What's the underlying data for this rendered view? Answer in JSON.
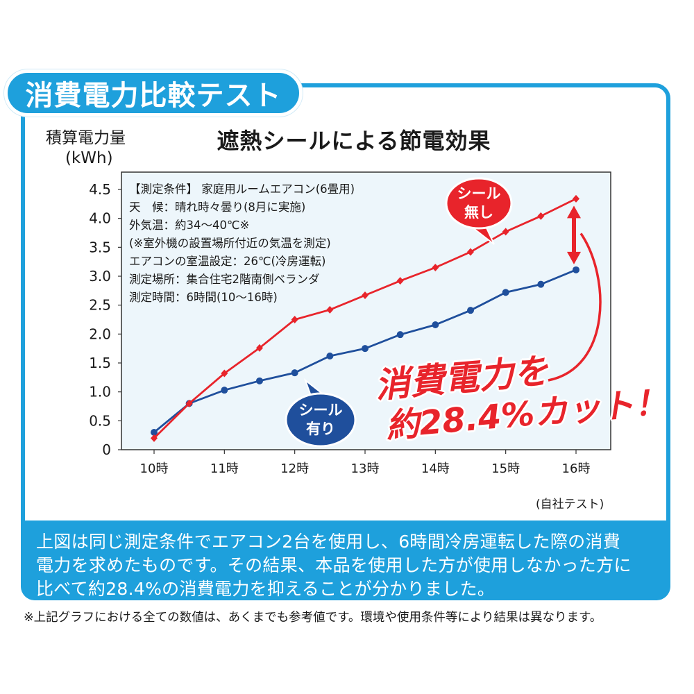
{
  "badge": "消費電力比較テスト",
  "footnote": "※上記グラフにおける全ての数値は、あくまでも参考値です。環境や使用条件等により結果は異なります。",
  "description": {
    "lines": [
      "上図は同じ測定条件でエアコン2台を使用し、6時間冷房運転した際の消費",
      "電力を求めたものです。その結果、本品を使用した方が使用しなかった方に",
      "比べて約28.4%の消費電力を抑えることが分かりました。"
    ]
  },
  "conditions": [
    "【測定条件】 家庭用ルームエアコン(6畳用)",
    "天　候：晴れ時々曇り(8月に実施)",
    "外気温：約34～40℃※",
    "(※室外機の設置場所付近の気温を測定)",
    "エアコンの室温設定：26℃(冷房運転)",
    "測定場所：集合住宅2階南側ベランダ",
    "測定時間：6時間(10～16時)"
  ],
  "callouts": {
    "without_line1": "シール",
    "without_line2": "無し",
    "with_line1": "シール",
    "with_line2": "有り",
    "cut_line1": "消費電力を",
    "cut_line2": "約28.4%カット！"
  },
  "source": "(自社テスト)",
  "colors": {
    "accent": "#1ea0dc",
    "red": "#e8242b",
    "blue": "#1f4f9c",
    "plot_bg": "#edf6fb"
  },
  "chart_data": {
    "type": "line",
    "title": "遮熱シールによる節電効果",
    "ylabel_line1": "積算電力量",
    "ylabel_line2": "(kWh)",
    "xlabel": "",
    "ylim": [
      0,
      4.8
    ],
    "yticks": [
      "0",
      "0.5",
      "1.0",
      "1.5",
      "2.0",
      "2.5",
      "3.0",
      "3.5",
      "4.0",
      "4.5"
    ],
    "x": [
      10,
      10.5,
      11,
      11.5,
      12,
      12.5,
      13,
      13.5,
      14,
      14.5,
      15,
      15.5,
      16
    ],
    "xticks": [
      {
        "value": 10,
        "label": "10時"
      },
      {
        "value": 11,
        "label": "11時"
      },
      {
        "value": 12,
        "label": "12時"
      },
      {
        "value": 13,
        "label": "13時"
      },
      {
        "value": 14,
        "label": "14時"
      },
      {
        "value": 15,
        "label": "15時"
      },
      {
        "value": 16,
        "label": "16時"
      }
    ],
    "grid": false,
    "series": [
      {
        "name": "シール無し",
        "color": "#e8242b",
        "marker": "diamond",
        "values": [
          0.2,
          0.8,
          1.32,
          1.76,
          2.25,
          2.42,
          2.67,
          2.92,
          3.15,
          3.42,
          3.77,
          4.04,
          4.34
        ]
      },
      {
        "name": "シール有り",
        "color": "#1f4f9c",
        "marker": "circle",
        "values": [
          0.3,
          0.8,
          1.03,
          1.19,
          1.33,
          1.62,
          1.75,
          1.99,
          2.16,
          2.41,
          2.72,
          2.86,
          3.11
        ]
      }
    ]
  }
}
